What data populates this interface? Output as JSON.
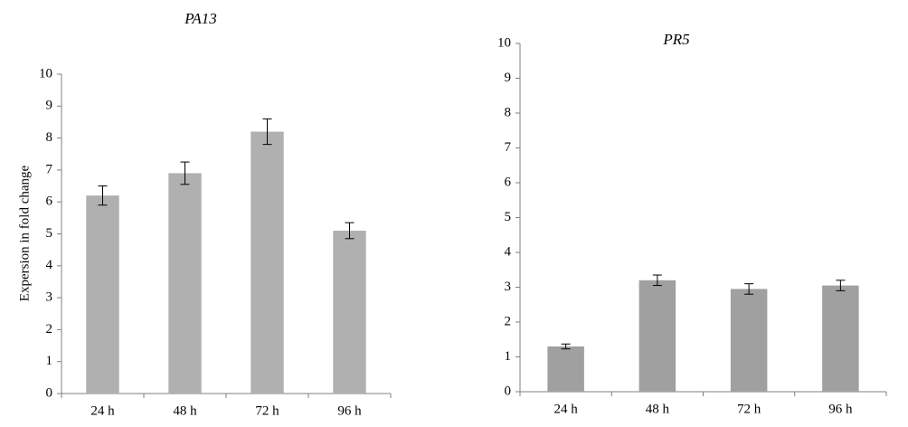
{
  "chart_data": [
    {
      "type": "bar",
      "title": "PA13",
      "y_label": "Expersion in fold change",
      "categories": [
        "24 h",
        "48 h",
        "72 h",
        "96 h"
      ],
      "values": [
        6.2,
        6.9,
        8.2,
        5.1
      ],
      "errors": [
        0.3,
        0.35,
        0.4,
        0.25
      ],
      "color": "#b0b0b0",
      "ylim": [
        0,
        10
      ],
      "yticks": [
        0,
        1,
        2,
        3,
        4,
        5,
        6,
        7,
        8,
        9,
        10
      ]
    },
    {
      "type": "bar",
      "title": "PR5",
      "categories": [
        "24 h",
        "48 h",
        "72 h",
        "96 h"
      ],
      "values": [
        1.3,
        3.2,
        2.95,
        3.05
      ],
      "errors": [
        0.07,
        0.15,
        0.15,
        0.15
      ],
      "color": "#a0a0a0",
      "ylim": [
        0,
        10
      ],
      "yticks": [
        0,
        1,
        2,
        3,
        4,
        5,
        6,
        7,
        8,
        9,
        10
      ]
    }
  ]
}
